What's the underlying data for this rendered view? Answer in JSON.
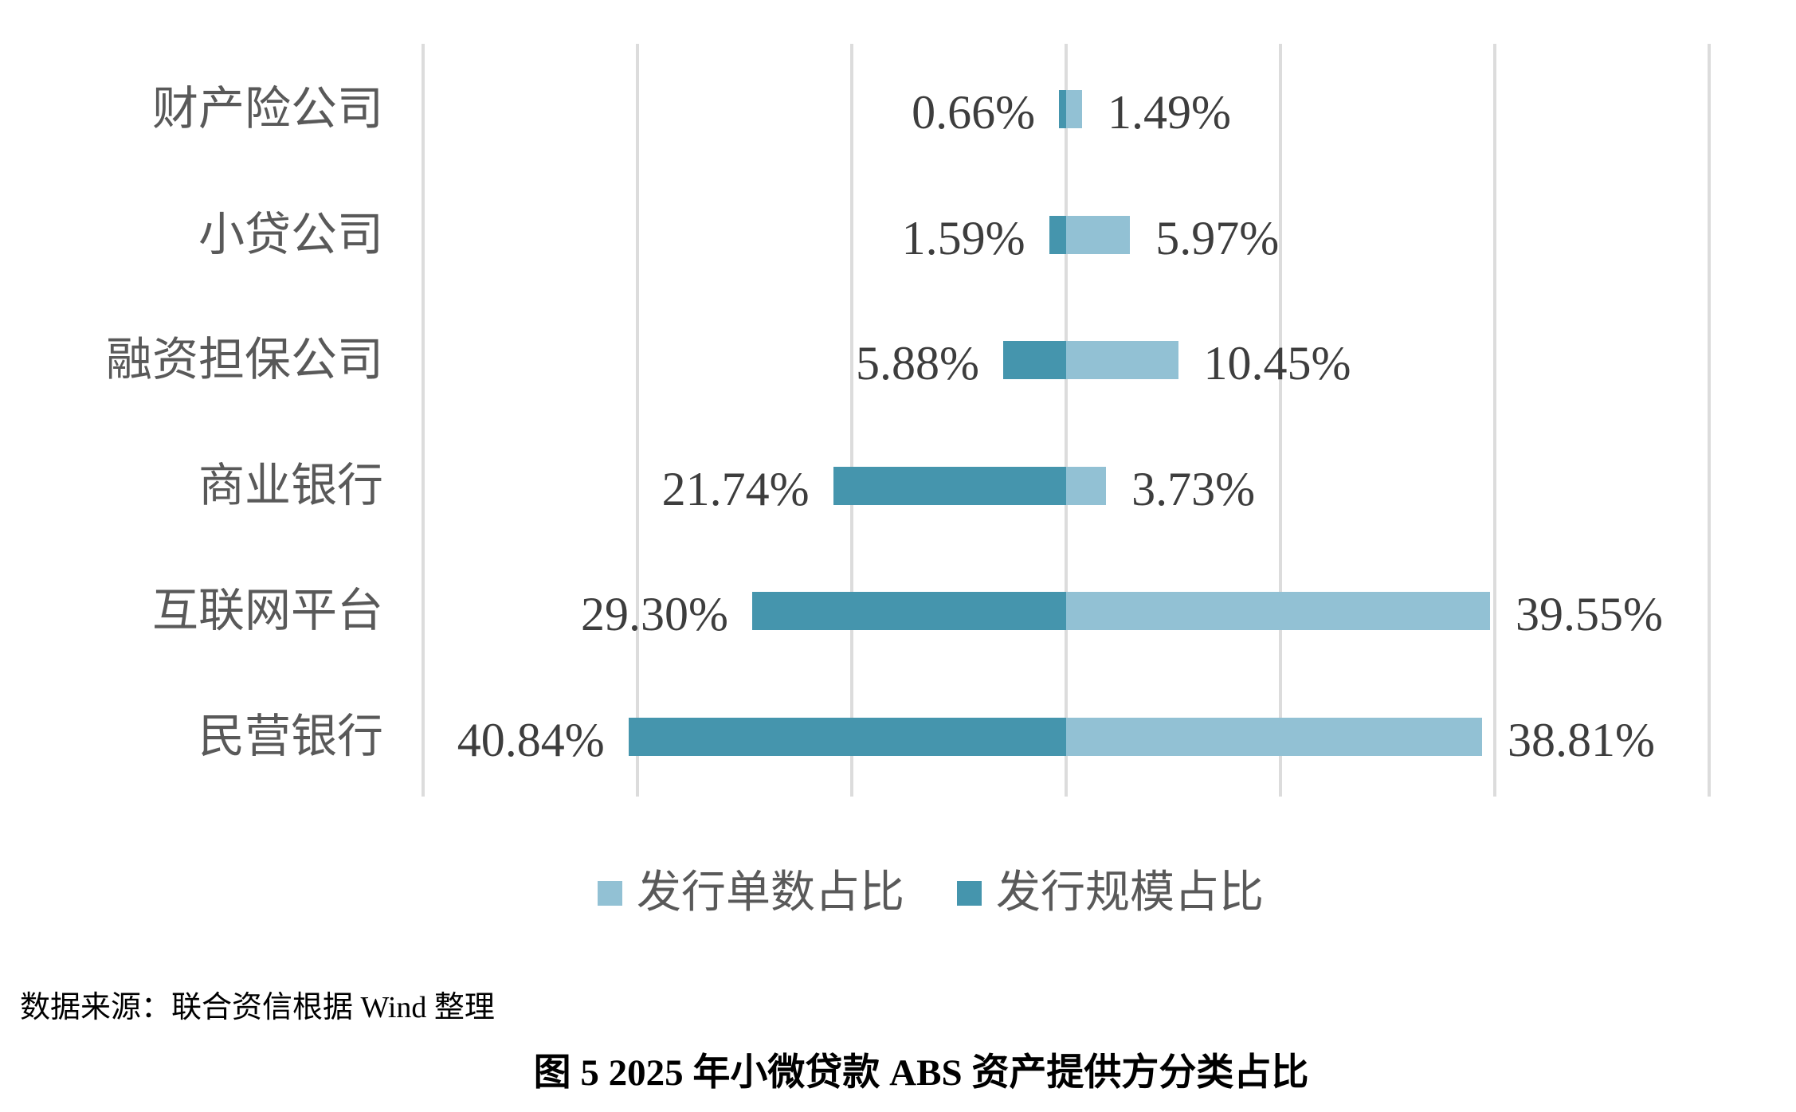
{
  "chart_data": {
    "type": "bar",
    "orientation": "horizontal-diverging",
    "title": "",
    "categories": [
      "财产险公司",
      "小贷公司",
      "融资担保公司",
      "商业银行",
      "互联网平台",
      "民营银行"
    ],
    "series": [
      {
        "name": "发行规模占比",
        "side": "left",
        "color": "#4595ad",
        "values": [
          0.66,
          1.59,
          5.88,
          21.74,
          29.3,
          40.84
        ],
        "labels": [
          "0.66%",
          "1.59%",
          "5.88%",
          "21.74%",
          "29.30%",
          "40.84%"
        ]
      },
      {
        "name": "发行单数占比",
        "side": "right",
        "color": "#92c1d4",
        "values": [
          1.49,
          5.97,
          10.45,
          3.73,
          39.55,
          38.81
        ],
        "labels": [
          "1.49%",
          "5.97%",
          "10.45%",
          "3.73%",
          "39.55%",
          "38.81%"
        ]
      }
    ],
    "xlim": [
      -60,
      60
    ],
    "grid_step": 20,
    "grid": true,
    "gridline_color": "#dcdcdc",
    "legend_position": "bottom-center",
    "legend": [
      {
        "label": "发行单数占比",
        "color": "#92c1d4"
      },
      {
        "label": "发行规模占比",
        "color": "#4595ad"
      }
    ]
  },
  "source_note": "数据来源：联合资信根据 Wind 整理",
  "caption": "图 5  2025 年小微贷款 ABS 资产提供方分类占比"
}
